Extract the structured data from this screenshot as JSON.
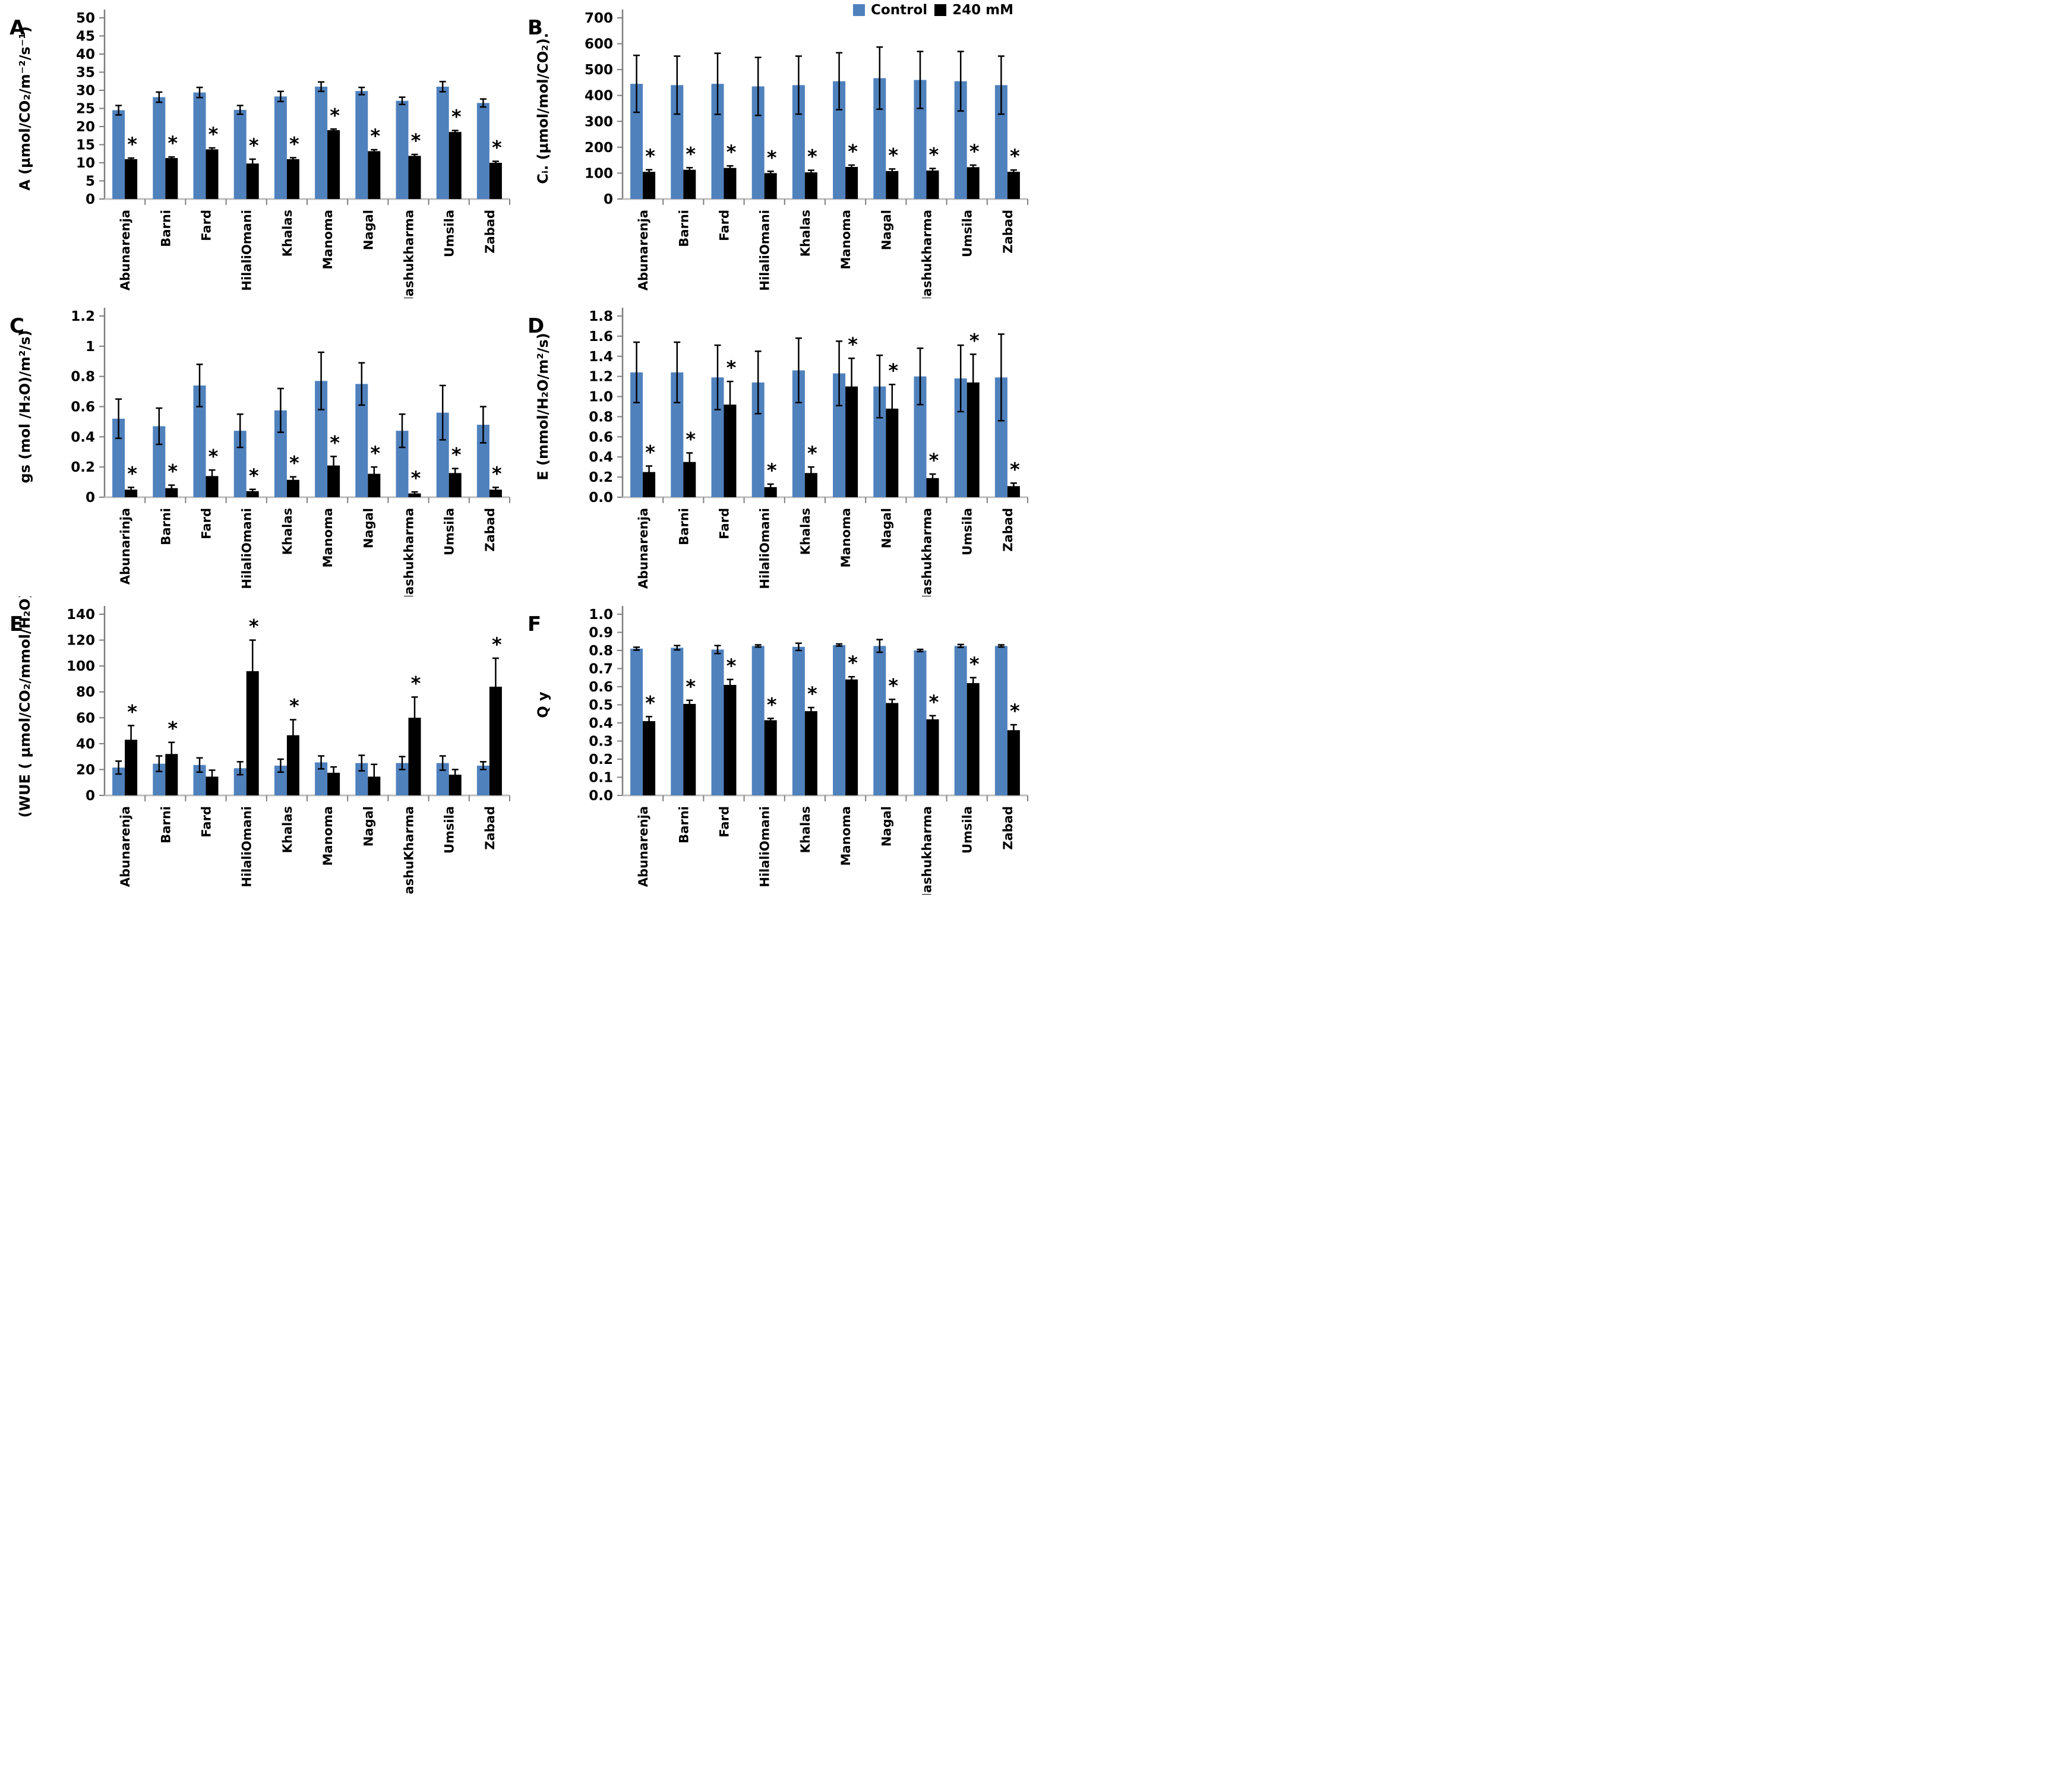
{
  "legend": {
    "control_label": "Control",
    "treatment_label": "240 mM"
  },
  "colors": {
    "control": "#4F81BD",
    "treatment": "#000000",
    "axis": "#7f7f7f",
    "error": "#000000"
  },
  "significance_marker": "*",
  "chart_data": [
    {
      "panel": "A",
      "type": "bar",
      "ylabel": "A (μmol/CO₂/m⁻²/s⁻¹)",
      "ylim": [
        0,
        50
      ],
      "yticks": [
        "0",
        "5",
        "10",
        "15",
        "20",
        "25",
        "30",
        "35",
        "40",
        "45",
        "50"
      ],
      "categories": [
        "Abunarenja",
        "Barni",
        "Fard",
        "HilaliOmani",
        "Khalas",
        "Manoma",
        "Nagal",
        "Nashukharma",
        "Umsila",
        "Zabad"
      ],
      "series": [
        {
          "name": "Control",
          "values": [
            24.5,
            28.1,
            29.4,
            24.6,
            28.3,
            31.0,
            29.8,
            27.1,
            31.0,
            26.5
          ],
          "errors": [
            1.3,
            1.4,
            1.4,
            1.2,
            1.4,
            1.3,
            1.0,
            1.0,
            1.4,
            1.1
          ]
        },
        {
          "name": "240 mM",
          "values": [
            11.0,
            11.3,
            13.7,
            9.8,
            11.0,
            19.0,
            13.2,
            11.9,
            18.5,
            10.0
          ],
          "errors": [
            0.3,
            0.3,
            0.4,
            1.2,
            0.4,
            0.3,
            0.4,
            0.4,
            0.4,
            0.4
          ]
        }
      ],
      "significant": [
        true,
        true,
        true,
        true,
        true,
        true,
        true,
        true,
        true,
        true
      ]
    },
    {
      "panel": "B",
      "type": "bar",
      "ylabel": "Cᵢ. (μmol/mol/CO₂).",
      "ylim": [
        0,
        700
      ],
      "yticks": [
        "0",
        "100",
        "200",
        "300",
        "400",
        "500",
        "600",
        "700"
      ],
      "categories": [
        "Abunarenja",
        "Barni",
        "Fard",
        "HilaliOmani",
        "Khalas",
        "Manoma",
        "Nagal",
        "Nashukharma",
        "Umsila",
        "Zabad"
      ],
      "series": [
        {
          "name": "Control",
          "values": [
            445,
            440,
            445,
            435,
            440,
            455,
            467,
            460,
            455,
            440
          ],
          "errors": [
            110,
            112,
            118,
            112,
            112,
            110,
            120,
            110,
            115,
            112
          ]
        },
        {
          "name": "240 mM",
          "values": [
            105,
            113,
            120,
            100,
            103,
            124,
            108,
            110,
            123,
            105
          ],
          "errors": [
            8,
            8,
            8,
            7,
            8,
            7,
            8,
            8,
            8,
            7
          ]
        }
      ],
      "significant": [
        true,
        true,
        true,
        true,
        true,
        true,
        true,
        true,
        true,
        true
      ]
    },
    {
      "panel": "C",
      "type": "bar",
      "ylabel": "gs (mol /H₂O)/m²/s)",
      "ylim": [
        0,
        1.2
      ],
      "yticks": [
        "0",
        "0.2",
        "0.4",
        "0.6",
        "0.8",
        "1",
        "1.2"
      ],
      "categories": [
        "Abunarinja",
        "Barni",
        "Fard",
        "HilaliOmani",
        "Khalas",
        "Manoma",
        "Nagal",
        "Nashukharma",
        "Umsila",
        "Zabad"
      ],
      "series": [
        {
          "name": "Control",
          "values": [
            0.52,
            0.47,
            0.74,
            0.44,
            0.575,
            0.77,
            0.75,
            0.44,
            0.56,
            0.48
          ],
          "errors": [
            0.13,
            0.12,
            0.14,
            0.11,
            0.145,
            0.19,
            0.14,
            0.11,
            0.18,
            0.12
          ]
        },
        {
          "name": "240 mM",
          "values": [
            0.05,
            0.06,
            0.14,
            0.04,
            0.115,
            0.21,
            0.155,
            0.025,
            0.16,
            0.05
          ],
          "errors": [
            0.015,
            0.02,
            0.04,
            0.012,
            0.02,
            0.06,
            0.045,
            0.01,
            0.03,
            0.015
          ]
        }
      ],
      "significant": [
        true,
        true,
        true,
        true,
        true,
        true,
        true,
        true,
        true,
        true
      ]
    },
    {
      "panel": "D",
      "type": "bar",
      "ylabel": "E (mmol/H₂O/m²/s)",
      "ylim": [
        0,
        1.8
      ],
      "yticks": [
        "0.0",
        "0.2",
        "0.4",
        "0.6",
        "0.8",
        "1.0",
        "1.2",
        "1.4",
        "1.6",
        "1.8"
      ],
      "categories": [
        "Abunarenja",
        "Barni",
        "Fard",
        "HilaliOmani",
        "Khalas",
        "Manoma",
        "Nagal",
        "Nashukharma",
        "Umsila",
        "Zabad"
      ],
      "series": [
        {
          "name": "Control",
          "values": [
            1.24,
            1.24,
            1.19,
            1.14,
            1.26,
            1.23,
            1.1,
            1.2,
            1.18,
            1.19
          ],
          "errors": [
            0.3,
            0.3,
            0.32,
            0.31,
            0.32,
            0.32,
            0.31,
            0.28,
            0.33,
            0.43
          ]
        },
        {
          "name": "240 mM",
          "values": [
            0.25,
            0.35,
            0.92,
            0.1,
            0.24,
            1.1,
            0.88,
            0.19,
            1.14,
            0.11
          ],
          "errors": [
            0.06,
            0.09,
            0.23,
            0.03,
            0.06,
            0.28,
            0.24,
            0.04,
            0.28,
            0.03
          ]
        }
      ],
      "significant": [
        true,
        true,
        true,
        true,
        true,
        true,
        true,
        true,
        true,
        true
      ]
    },
    {
      "panel": "E",
      "type": "bar",
      "ylabel": "(WUE ( μmol/CO₂/mmol/H₂O)",
      "ylim": [
        0,
        140
      ],
      "yticks": [
        "0",
        "20",
        "40",
        "60",
        "80",
        "100",
        "120",
        "140"
      ],
      "categories": [
        "Abunarenja",
        "Barni",
        "Fard",
        "HilaliOmani",
        "Khalas",
        "Manoma",
        "Nagal",
        "NashuKharma",
        "Umsila",
        "Zabad"
      ],
      "series": [
        {
          "name": "Control",
          "values": [
            21.5,
            24.5,
            23.5,
            21,
            23,
            25.5,
            25,
            25,
            25,
            23
          ],
          "errors": [
            5,
            6,
            5.5,
            5,
            5,
            5,
            6,
            5,
            5.5,
            3
          ]
        },
        {
          "name": "240 mM",
          "values": [
            43,
            32,
            14.5,
            96,
            46.5,
            17.5,
            14.5,
            60,
            16,
            84
          ],
          "errors": [
            11,
            9,
            5,
            24,
            12,
            4.5,
            9.5,
            16,
            4,
            22
          ]
        }
      ],
      "significant": [
        true,
        true,
        false,
        true,
        true,
        false,
        false,
        true,
        false,
        true
      ]
    },
    {
      "panel": "F",
      "type": "bar",
      "ylabel": "Q y",
      "ylim": [
        0,
        1.0
      ],
      "yticks": [
        "0.0",
        "0.1",
        "0.2",
        "0.3",
        "0.4",
        "0.5",
        "0.6",
        "0.7",
        "0.8",
        "0.9",
        "1.0"
      ],
      "categories": [
        "Abunarenja",
        "Barni",
        "Fard",
        "HilaliOmani",
        "Khalas",
        "Manoma",
        "Nagal",
        "Nashukharma",
        "Umsila",
        "Zabad"
      ],
      "series": [
        {
          "name": "Control",
          "values": [
            0.81,
            0.815,
            0.805,
            0.825,
            0.82,
            0.83,
            0.825,
            0.8,
            0.825,
            0.825
          ],
          "errors": [
            0.008,
            0.012,
            0.022,
            0.006,
            0.02,
            0.006,
            0.035,
            0.006,
            0.008,
            0.006
          ]
        },
        {
          "name": "240 mM",
          "values": [
            0.41,
            0.505,
            0.61,
            0.415,
            0.465,
            0.64,
            0.51,
            0.42,
            0.62,
            0.36
          ],
          "errors": [
            0.025,
            0.02,
            0.03,
            0.01,
            0.02,
            0.015,
            0.02,
            0.02,
            0.03,
            0.03
          ]
        }
      ],
      "significant": [
        true,
        true,
        true,
        true,
        true,
        true,
        true,
        true,
        true,
        true
      ]
    }
  ]
}
